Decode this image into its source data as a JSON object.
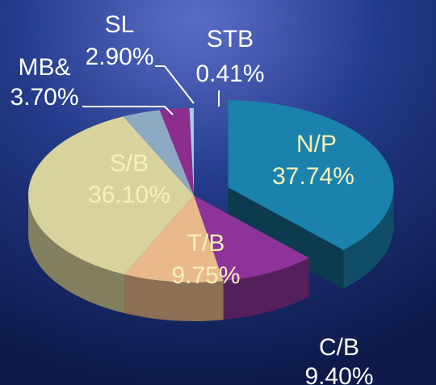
{
  "chart_data": {
    "type": "pie",
    "categories": [
      "N/P",
      "C/B",
      "T/B",
      "S/B",
      "MB&",
      "SL",
      "STB"
    ],
    "values": [
      37.74,
      9.4,
      9.75,
      36.1,
      3.7,
      2.9,
      0.41
    ],
    "value_labels": [
      "37.74%",
      "9.40%",
      "9.75%",
      "36.10%",
      "3.70%",
      "2.90%",
      "0.41%"
    ],
    "colors": [
      "#1b82ad",
      "#8e3399",
      "#e9b98c",
      "#d8d39c",
      "#8eaac2",
      "#8d2d8e",
      "#a6cde3"
    ],
    "explode": "N/P"
  }
}
